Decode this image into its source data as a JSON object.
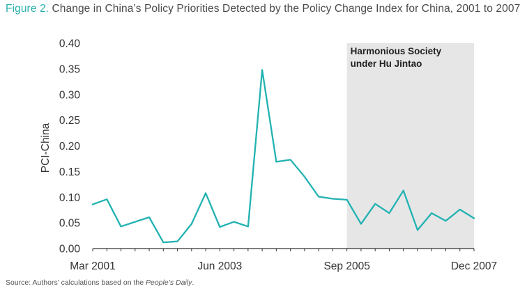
{
  "figure": {
    "number": "Figure 2.",
    "title": "Change in China’s Policy Priorities Detected by the Policy Change Index for China, 2001 to 2007"
  },
  "source": {
    "prefix": "Source: Authors’ calculations based on the ",
    "publication": "People’s Daily",
    "suffix": "."
  },
  "colors": {
    "line": "#22b2b2",
    "shade": "#e6e6e6",
    "title_accent": "#2bb1b0",
    "axis": "#333333"
  },
  "chart_data": {
    "type": "line",
    "ylabel": "PCI-China",
    "xlabel": "",
    "ylim": [
      0,
      0.4
    ],
    "yticks": [
      "0.00",
      "0.05",
      "0.10",
      "0.15",
      "0.20",
      "0.25",
      "0.30",
      "0.35",
      "0.40"
    ],
    "x_tick_labels": [
      "Mar 2001",
      "Jun 2003",
      "Sep 2005",
      "Dec 2007"
    ],
    "x_tick_indices": [
      0,
      9,
      18,
      27
    ],
    "shaded_region": {
      "label_line1": "Harmonious Society",
      "label_line2": "under Hu Jintao",
      "start_index": 18,
      "end_index": 27
    },
    "series": [
      {
        "values": [
          0.086,
          0.096,
          0.043,
          0.052,
          0.061,
          0.012,
          0.014,
          0.048,
          0.108,
          0.042,
          0.052,
          0.043,
          0.348,
          0.169,
          0.173,
          0.14,
          0.101,
          0.097,
          0.095,
          0.048,
          0.087,
          0.069,
          0.113,
          0.036,
          0.069,
          0.054,
          0.076,
          0.059
        ]
      }
    ]
  }
}
